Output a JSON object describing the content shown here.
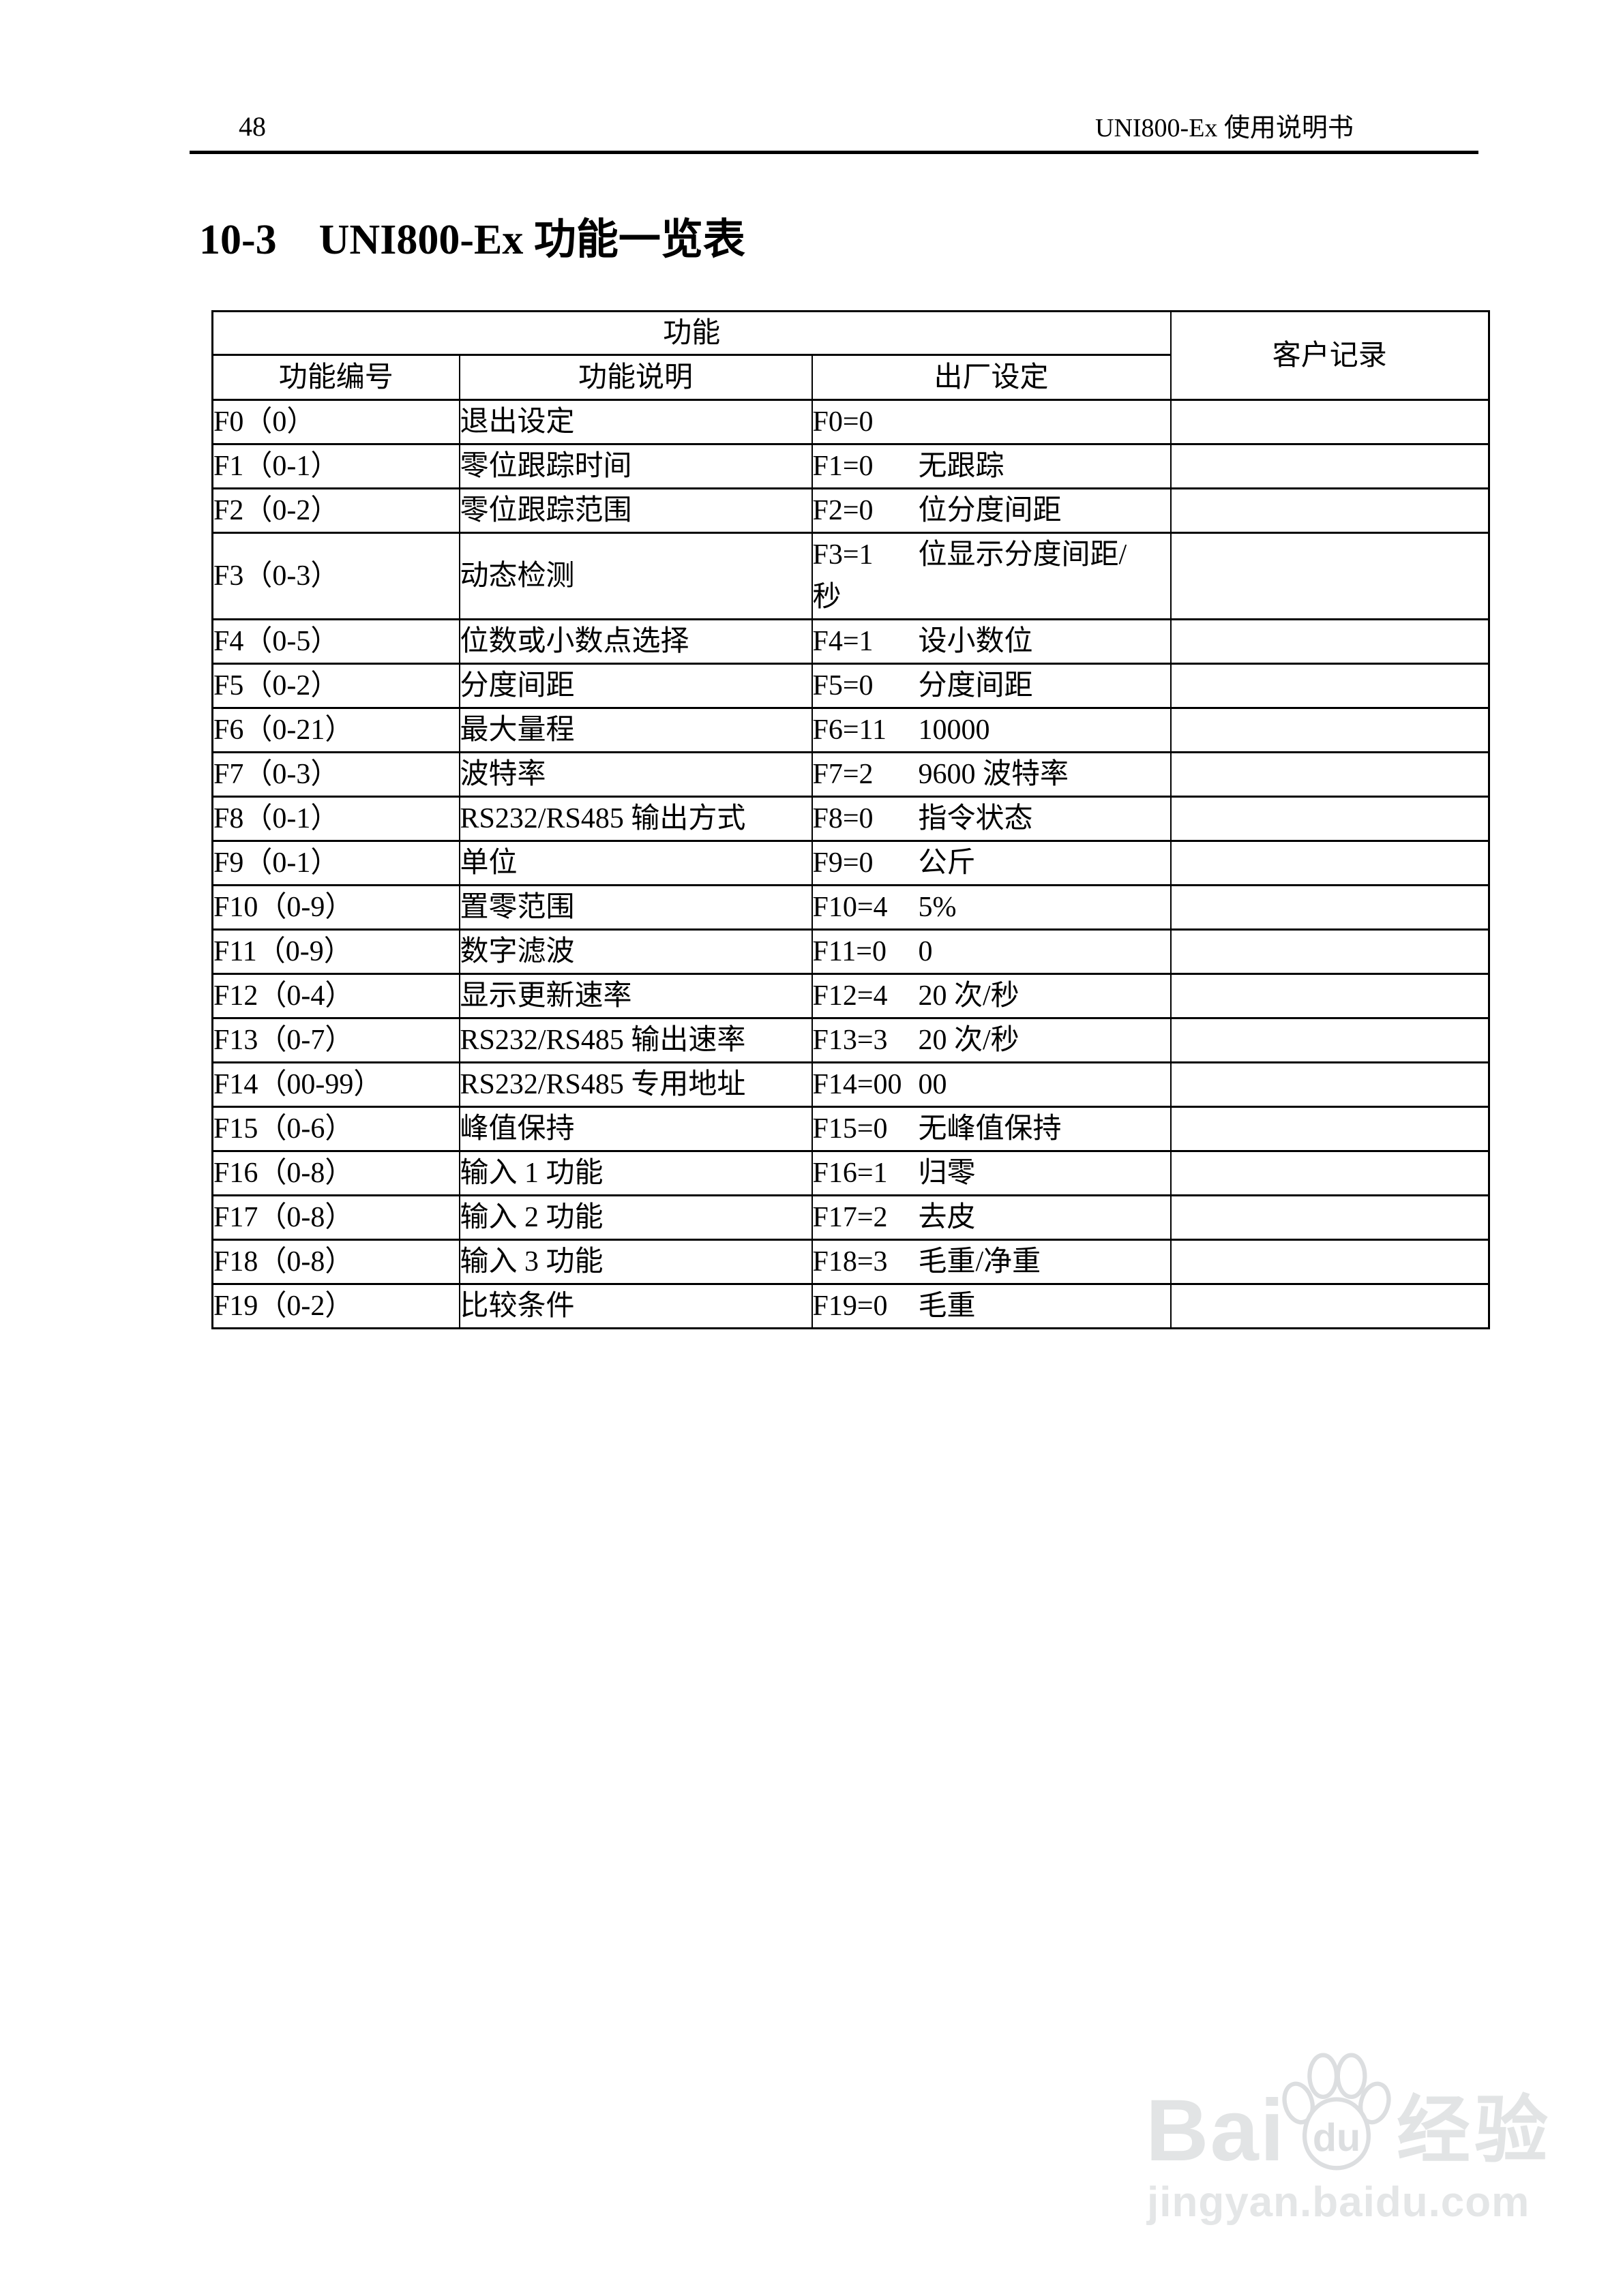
{
  "page": {
    "number": "48",
    "doc_title": "UNI800-Ex 使用说明书"
  },
  "section_title": {
    "number": "10-3",
    "text": "UNI800-Ex 功能一览表"
  },
  "table": {
    "header": {
      "group": "功能",
      "customer": "客户记录",
      "col_code": "功能编号",
      "col_desc": "功能说明",
      "col_setting": "出厂设定"
    },
    "rows": [
      {
        "code": "F0（0）",
        "desc": "退出设定",
        "setting": "F0=0",
        "setting_desc": ""
      },
      {
        "code": "F1（0-1）",
        "desc": "零位跟踪时间",
        "setting": "F1=0",
        "setting_desc": "无跟踪"
      },
      {
        "code": "F2（0-2）",
        "desc": "零位跟踪范围",
        "setting": "F2=0",
        "setting_desc": "位分度间距"
      },
      {
        "code": "F3（0-3）",
        "desc": "动态检测",
        "setting": "F3=1",
        "setting_desc": "位显示分度间距/",
        "setting_desc2": "秒",
        "tall": true
      },
      {
        "code": "F4（0-5）",
        "desc": "位数或小数点选择",
        "setting": "F4=1",
        "setting_desc": "设小数位"
      },
      {
        "code": "F5（0-2）",
        "desc": "分度间距",
        "setting": "F5=0",
        "setting_desc": "分度间距"
      },
      {
        "code": "F6（0-21）",
        "desc": "最大量程",
        "setting": "F6=11",
        "setting_desc": "10000"
      },
      {
        "code": "F7（0-3）",
        "desc": "波特率",
        "setting": "F7=2",
        "setting_desc": "9600 波特率"
      },
      {
        "code": "F8（0-1）",
        "desc": "RS232/RS485 输出方式",
        "setting": "F8=0",
        "setting_desc": "指令状态"
      },
      {
        "code": "F9（0-1）",
        "desc": "单位",
        "setting": "F9=0",
        "setting_desc": "公斤"
      },
      {
        "code": "F10（0-9）",
        "desc": "置零范围",
        "setting": "F10=4",
        "setting_desc": "5%"
      },
      {
        "code": "F11（0-9）",
        "desc": "数字滤波",
        "setting": "F11=0",
        "setting_desc": "0"
      },
      {
        "code": "F12（0-4）",
        "desc": "显示更新速率",
        "setting": "F12=4",
        "setting_desc": "20 次/秒"
      },
      {
        "code": "F13（0-7）",
        "desc": "RS232/RS485 输出速率",
        "setting": "F13=3",
        "setting_desc": "20 次/秒"
      },
      {
        "code": "F14（00-99）",
        "desc": "RS232/RS485 专用地址",
        "setting": "F14=00",
        "setting_desc": "00"
      },
      {
        "code": "F15（0-6）",
        "desc": "峰值保持",
        "setting": "F15=0",
        "setting_desc": "无峰值保持"
      },
      {
        "code": "F16（0-8）",
        "desc": "输入 1 功能",
        "setting": "F16=1",
        "setting_desc": "归零"
      },
      {
        "code": "F17（0-8）",
        "desc": "输入 2 功能",
        "setting": "F17=2",
        "setting_desc": "去皮"
      },
      {
        "code": "F18（0-8）",
        "desc": "输入 3 功能",
        "setting": "F18=3",
        "setting_desc": "毛重/净重"
      },
      {
        "code": "F19（0-2）",
        "desc": "比较条件",
        "setting": "F19=0",
        "setting_desc": "毛重"
      }
    ]
  },
  "watermark": {
    "brand_latin": "Bai",
    "brand_du": "du",
    "brand_cjk": "经验",
    "site": "jingyan.baidu.com",
    "color": "#e2e4e5"
  },
  "colors": {
    "text": "#000000",
    "border": "#000000",
    "background": "#ffffff",
    "watermark": "#e2e4e5"
  }
}
